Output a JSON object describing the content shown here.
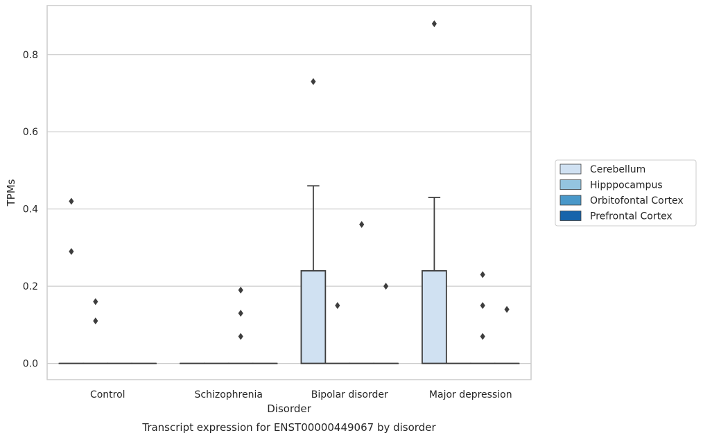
{
  "chart_data": {
    "type": "box",
    "caption": "Transcript expression for ENST00000449067 by disorder",
    "xlabel": "Disorder",
    "ylabel": "TPMs",
    "ylim": [
      -0.042,
      0.927
    ],
    "yticks": [
      "0.0",
      "0.2",
      "0.4",
      "0.6",
      "0.8"
    ],
    "ytick_values": [
      0.0,
      0.2,
      0.4,
      0.6,
      0.8
    ],
    "grid": "horizontal",
    "legend_position": "right",
    "categories": [
      "Control",
      "Schizophrenia",
      "Bipolar disorder",
      "Major depression"
    ],
    "series": [
      {
        "name": "Cerebellum",
        "color": "#d0e1f2",
        "boxes": [
          {
            "category": "Control",
            "q1": 0,
            "median": 0,
            "q3": 0,
            "whisker_low": 0,
            "whisker_high": 0,
            "outliers": [
              0.42,
              0.29
            ]
          },
          {
            "category": "Schizophrenia",
            "q1": 0,
            "median": 0,
            "q3": 0,
            "whisker_low": 0,
            "whisker_high": 0,
            "outliers": []
          },
          {
            "category": "Bipolar disorder",
            "q1": 0,
            "median": 0,
            "q3": 0.24,
            "whisker_low": 0,
            "whisker_high": 0.46,
            "outliers": [
              0.73
            ]
          },
          {
            "category": "Major depression",
            "q1": 0,
            "median": 0,
            "q3": 0.24,
            "whisker_low": 0,
            "whisker_high": 0.43,
            "outliers": [
              0.88
            ]
          }
        ]
      },
      {
        "name": "Hipppocampus",
        "color": "#94c4df",
        "boxes": [
          {
            "category": "Control",
            "q1": 0,
            "median": 0,
            "q3": 0,
            "whisker_low": 0,
            "whisker_high": 0,
            "outliers": [
              0.16,
              0.11
            ]
          },
          {
            "category": "Schizophrenia",
            "q1": 0,
            "median": 0,
            "q3": 0,
            "whisker_low": 0,
            "whisker_high": 0,
            "outliers": []
          },
          {
            "category": "Bipolar disorder",
            "q1": 0,
            "median": 0,
            "q3": 0,
            "whisker_low": 0,
            "whisker_high": 0,
            "outliers": [
              0.15
            ]
          },
          {
            "category": "Major depression",
            "q1": 0,
            "median": 0,
            "q3": 0,
            "whisker_low": 0,
            "whisker_high": 0,
            "outliers": []
          }
        ]
      },
      {
        "name": "Orbitofontal Cortex",
        "color": "#4a98c9",
        "boxes": [
          {
            "category": "Control",
            "q1": 0,
            "median": 0,
            "q3": 0,
            "whisker_low": 0,
            "whisker_high": 0,
            "outliers": []
          },
          {
            "category": "Schizophrenia",
            "q1": 0,
            "median": 0,
            "q3": 0,
            "whisker_low": 0,
            "whisker_high": 0,
            "outliers": [
              0.19,
              0.13,
              0.07
            ]
          },
          {
            "category": "Bipolar disorder",
            "q1": 0,
            "median": 0,
            "q3": 0,
            "whisker_low": 0,
            "whisker_high": 0,
            "outliers": [
              0.36
            ]
          },
          {
            "category": "Major depression",
            "q1": 0,
            "median": 0,
            "q3": 0,
            "whisker_low": 0,
            "whisker_high": 0,
            "outliers": [
              0.23,
              0.15,
              0.07
            ]
          }
        ]
      },
      {
        "name": "Prefrontal Cortex",
        "color": "#1764ab",
        "boxes": [
          {
            "category": "Control",
            "q1": 0,
            "median": 0,
            "q3": 0,
            "whisker_low": 0,
            "whisker_high": 0,
            "outliers": []
          },
          {
            "category": "Schizophrenia",
            "q1": 0,
            "median": 0,
            "q3": 0,
            "whisker_low": 0,
            "whisker_high": 0,
            "outliers": []
          },
          {
            "category": "Bipolar disorder",
            "q1": 0,
            "median": 0,
            "q3": 0,
            "whisker_low": 0,
            "whisker_high": 0,
            "outliers": [
              0.2
            ]
          },
          {
            "category": "Major depression",
            "q1": 0,
            "median": 0,
            "q3": 0,
            "whisker_low": 0,
            "whisker_high": 0,
            "outliers": [
              0.14
            ]
          }
        ]
      }
    ]
  }
}
